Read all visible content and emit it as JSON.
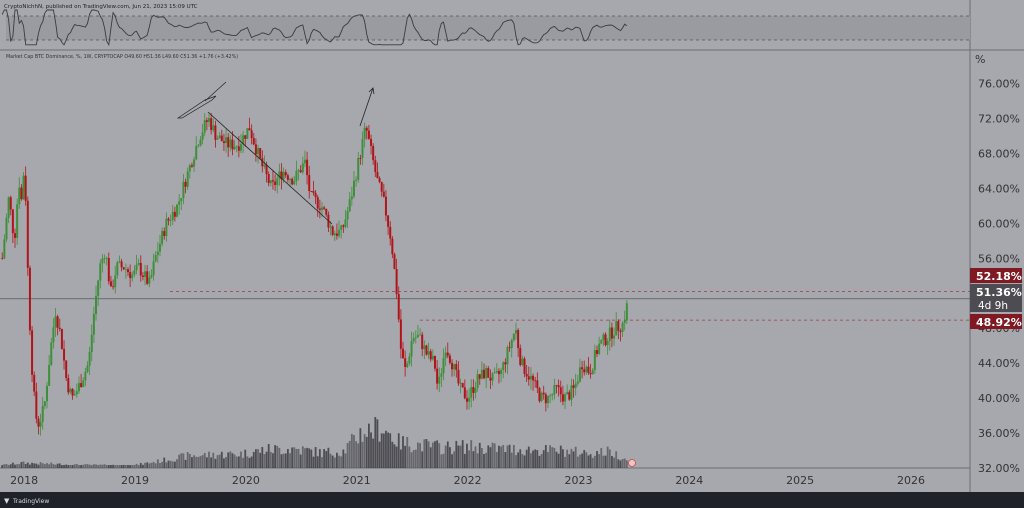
{
  "header": {
    "top_line": "CryptoNichhN, published on TradingView.com, Jun 21, 2023 15:09 UTC",
    "info_line": "Market Cap BTC Dominance, %, 1W, CRYPTOCAP  O49.60  H51.36  L49.60  C51.36  +1.76 (+3.42%)"
  },
  "footer": {
    "brand": "TradingView"
  },
  "colors": {
    "bg": "#a7a8ad",
    "up": "#3d8f3a",
    "down": "#b0141a",
    "volume": "#4a4a4f",
    "label_red": "#801922",
    "label_dark": "#4c4c52"
  },
  "chart_data": {
    "type": "candlestick",
    "title": "Market Cap BTC Dominance",
    "ylabel": "%",
    "ylim": [
      32,
      78
    ],
    "y_ticks": [
      "76.00%",
      "72.00%",
      "68.00%",
      "64.00%",
      "60.00%",
      "56.00%",
      "48.00%",
      "44.00%",
      "40.00%",
      "36.00%",
      "32.00%"
    ],
    "y_tick_values": [
      76,
      72,
      68,
      64,
      60,
      56,
      48,
      44,
      40,
      36,
      32
    ],
    "x_ticks": [
      "2018",
      "2019",
      "2020",
      "2021",
      "2022",
      "2023",
      "2024",
      "2025",
      "2026"
    ],
    "x_tick_years": [
      2018,
      2019,
      2020,
      2021,
      2022,
      2023,
      2024,
      2025,
      2026
    ],
    "xlim": [
      2017.8,
      2026.55
    ],
    "price_trajectory": [
      [
        2017.82,
        56
      ],
      [
        2017.88,
        63
      ],
      [
        2017.93,
        58
      ],
      [
        2017.97,
        65
      ],
      [
        2018.0,
        62
      ],
      [
        2018.02,
        68
      ],
      [
        2018.05,
        55
      ],
      [
        2018.08,
        45
      ],
      [
        2018.12,
        38
      ],
      [
        2018.15,
        37
      ],
      [
        2018.2,
        39
      ],
      [
        2018.25,
        45
      ],
      [
        2018.3,
        50
      ],
      [
        2018.35,
        47
      ],
      [
        2018.4,
        42
      ],
      [
        2018.45,
        40
      ],
      [
        2018.5,
        41
      ],
      [
        2018.6,
        44
      ],
      [
        2018.65,
        50
      ],
      [
        2018.7,
        55
      ],
      [
        2018.75,
        57
      ],
      [
        2018.8,
        52
      ],
      [
        2018.85,
        55
      ],
      [
        2018.92,
        55
      ],
      [
        2019.0,
        54
      ],
      [
        2019.05,
        55
      ],
      [
        2019.1,
        54
      ],
      [
        2019.15,
        53
      ],
      [
        2019.2,
        56
      ],
      [
        2019.3,
        60
      ],
      [
        2019.4,
        62
      ],
      [
        2019.5,
        66
      ],
      [
        2019.6,
        70
      ],
      [
        2019.68,
        72
      ],
      [
        2019.75,
        70
      ],
      [
        2019.85,
        69
      ],
      [
        2019.95,
        69
      ],
      [
        2020.05,
        71
      ],
      [
        2020.15,
        67
      ],
      [
        2020.25,
        64
      ],
      [
        2020.35,
        66
      ],
      [
        2020.45,
        65
      ],
      [
        2020.55,
        67
      ],
      [
        2020.6,
        63
      ],
      [
        2020.7,
        62
      ],
      [
        2020.8,
        59
      ],
      [
        2020.88,
        59
      ],
      [
        2020.95,
        62
      ],
      [
        2021.0,
        65
      ],
      [
        2021.05,
        68
      ],
      [
        2021.1,
        71
      ],
      [
        2021.15,
        68
      ],
      [
        2021.2,
        65
      ],
      [
        2021.27,
        62
      ],
      [
        2021.33,
        58
      ],
      [
        2021.38,
        52
      ],
      [
        2021.42,
        45
      ],
      [
        2021.46,
        43
      ],
      [
        2021.52,
        47
      ],
      [
        2021.58,
        47
      ],
      [
        2021.65,
        45
      ],
      [
        2021.72,
        44
      ],
      [
        2021.75,
        41
      ],
      [
        2021.82,
        46
      ],
      [
        2021.88,
        44
      ],
      [
        2021.95,
        41
      ],
      [
        2022.02,
        40
      ],
      [
        2022.1,
        42
      ],
      [
        2022.18,
        43
      ],
      [
        2022.25,
        42
      ],
      [
        2022.32,
        43
      ],
      [
        2022.4,
        46
      ],
      [
        2022.45,
        48
      ],
      [
        2022.5,
        44
      ],
      [
        2022.6,
        42
      ],
      [
        2022.68,
        40
      ],
      [
        2022.75,
        40
      ],
      [
        2022.82,
        41
      ],
      [
        2022.9,
        40
      ],
      [
        2022.98,
        41
      ],
      [
        2023.05,
        44
      ],
      [
        2023.12,
        43
      ],
      [
        2023.2,
        46
      ],
      [
        2023.28,
        47
      ],
      [
        2023.35,
        48
      ],
      [
        2023.42,
        48.5
      ],
      [
        2023.47,
        51.36
      ]
    ],
    "volume_envelope": [
      [
        2017.8,
        0.5
      ],
      [
        2018.0,
        1.0
      ],
      [
        2018.5,
        0.6
      ],
      [
        2019.0,
        0.5
      ],
      [
        2019.25,
        1.4
      ],
      [
        2019.5,
        2.4
      ],
      [
        2019.75,
        2.6
      ],
      [
        2020.0,
        2.8
      ],
      [
        2020.2,
        3.6
      ],
      [
        2020.45,
        3.8
      ],
      [
        2020.7,
        3.0
      ],
      [
        2020.9,
        3.3
      ],
      [
        2021.05,
        6.8
      ],
      [
        2021.25,
        8.0
      ],
      [
        2021.4,
        5.0
      ],
      [
        2021.6,
        4.5
      ],
      [
        2021.8,
        4.0
      ],
      [
        2022.0,
        4.2
      ],
      [
        2022.3,
        3.8
      ],
      [
        2022.6,
        3.5
      ],
      [
        2022.85,
        3.4
      ],
      [
        2023.1,
        2.9
      ],
      [
        2023.3,
        3.2
      ],
      [
        2023.47,
        1.6
      ]
    ],
    "reference_lines": [
      {
        "value": 52.18,
        "label": "52.18%"
      },
      {
        "value": 48.92,
        "label": "48.92%"
      },
      {
        "value": 51.36,
        "label": "51.36%"
      }
    ],
    "last_price_label": "51.36%",
    "countdown_label": "4d 9h",
    "rsi_pane": {
      "upper": 70,
      "lower": 30
    }
  }
}
